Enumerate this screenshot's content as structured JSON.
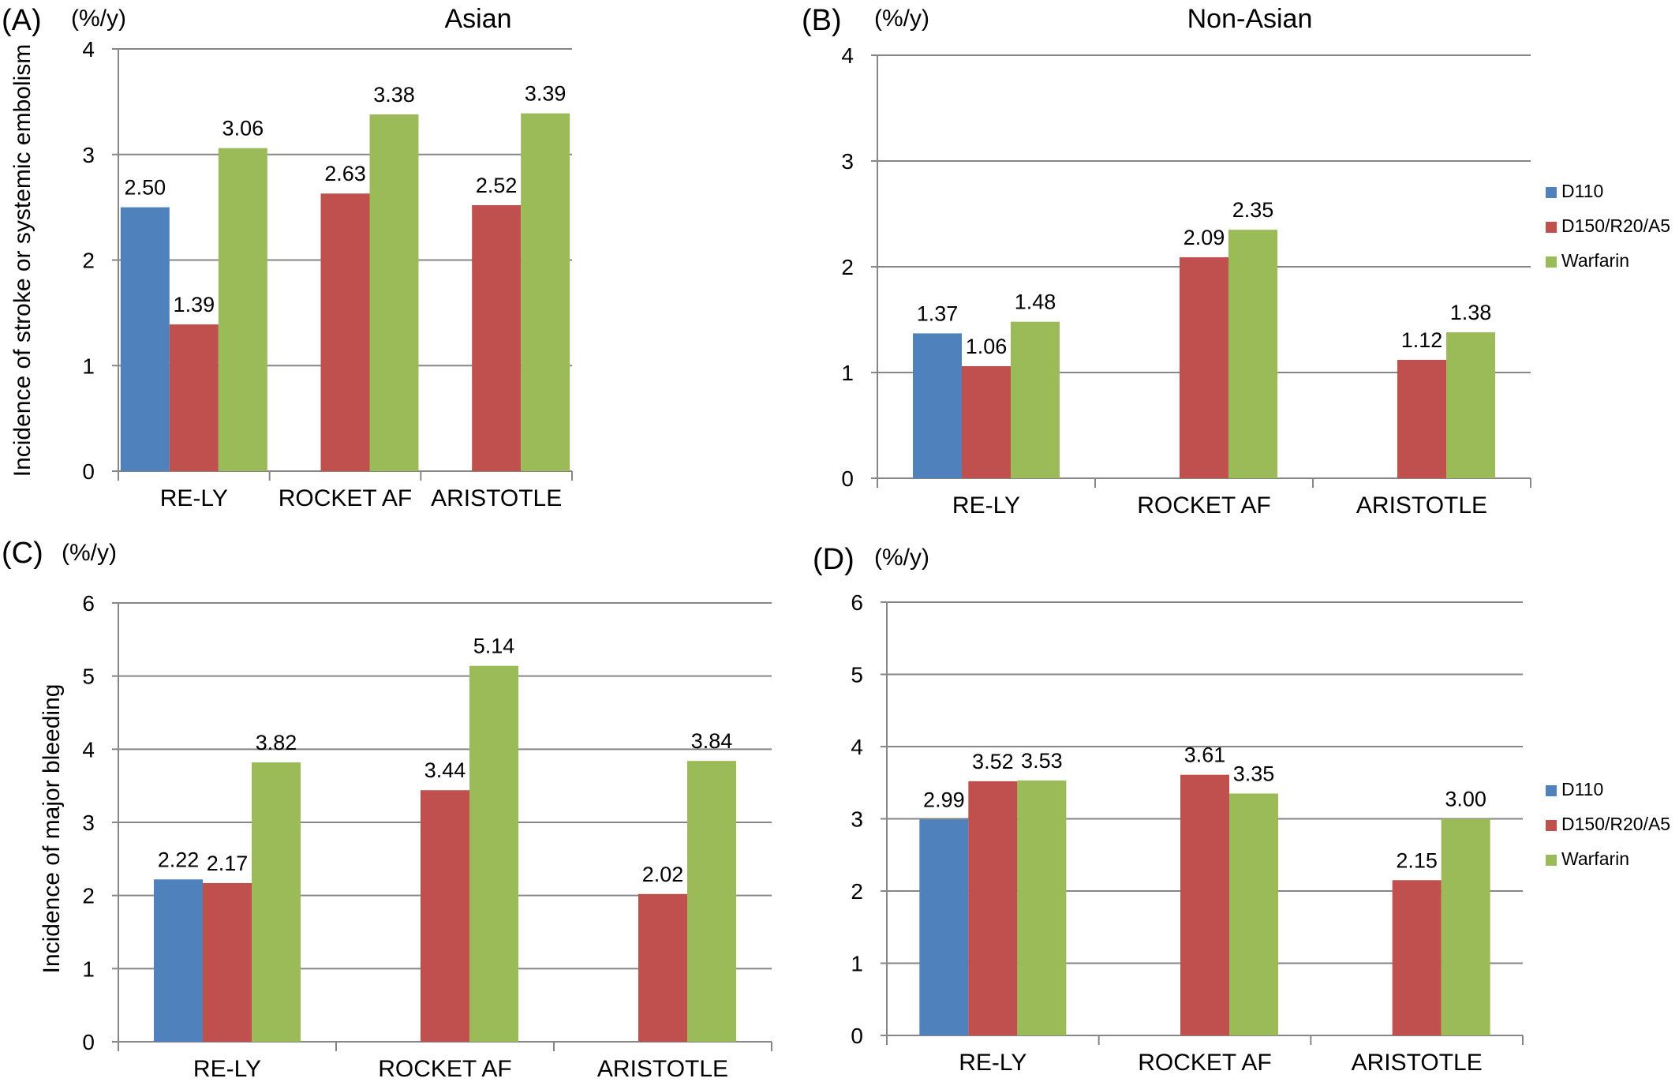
{
  "chart_data": [
    {
      "panel": "(A)",
      "type": "bar",
      "title": "Asian",
      "unit": "(%/y)",
      "ylabel": "Incidence of stroke or systemic embolism",
      "categories": [
        "RE-LY",
        "ROCKET AF",
        "ARISTOTLE"
      ],
      "ylim": [
        0,
        4
      ],
      "yticks": [
        0,
        1,
        2,
        3,
        4
      ],
      "grid": true,
      "legend": null,
      "series": [
        {
          "name": "D110",
          "color": "#4F81BD",
          "values": [
            2.5,
            null,
            null
          ],
          "labels": [
            "2.50",
            null,
            null
          ]
        },
        {
          "name": "D150/R20/A5",
          "color": "#C0504D",
          "values": [
            1.39,
            2.63,
            2.52
          ],
          "labels": [
            "1.39",
            "2.63",
            "2.52"
          ]
        },
        {
          "name": "Warfarin",
          "color": "#9BBB59",
          "values": [
            3.06,
            3.38,
            3.39
          ],
          "labels": [
            "3.06",
            "3.38",
            "3.39"
          ]
        }
      ]
    },
    {
      "panel": "(B)",
      "type": "bar",
      "title": "Non-Asian",
      "unit": "(%/y)",
      "ylabel": "",
      "categories": [
        "RE-LY",
        "ROCKET AF",
        "ARISTOTLE"
      ],
      "ylim": [
        0,
        4
      ],
      "yticks": [
        0,
        1,
        2,
        3,
        4
      ],
      "grid": true,
      "legend": "right",
      "series": [
        {
          "name": "D110",
          "color": "#4F81BD",
          "values": [
            1.37,
            null,
            null
          ],
          "labels": [
            "1.37",
            null,
            null
          ]
        },
        {
          "name": "D150/R20/A5",
          "color": "#C0504D",
          "values": [
            1.06,
            2.09,
            1.12
          ],
          "labels": [
            "1.06",
            "2.09",
            "1.12"
          ]
        },
        {
          "name": "Warfarin",
          "color": "#9BBB59",
          "values": [
            1.48,
            2.35,
            1.38
          ],
          "labels": [
            "1.48",
            "2.35",
            "1.38"
          ]
        }
      ]
    },
    {
      "panel": "(C)",
      "type": "bar",
      "title": "",
      "unit": "(%/y)",
      "ylabel": "Incidence of major bleeding",
      "categories": [
        "RE-LY",
        "ROCKET AF",
        "ARISTOTLE"
      ],
      "ylim": [
        0,
        6
      ],
      "yticks": [
        0,
        1,
        2,
        3,
        4,
        5,
        6
      ],
      "grid": true,
      "legend": null,
      "series": [
        {
          "name": "D110",
          "color": "#4F81BD",
          "values": [
            2.22,
            null,
            null
          ],
          "labels": [
            "2.22",
            null,
            null
          ]
        },
        {
          "name": "D150/R20/A5",
          "color": "#C0504D",
          "values": [
            2.17,
            3.44,
            2.02
          ],
          "labels": [
            "2.17",
            "3.44",
            "2.02"
          ]
        },
        {
          "name": "Warfarin",
          "color": "#9BBB59",
          "values": [
            3.82,
            5.14,
            3.84
          ],
          "labels": [
            "3.82",
            "5.14",
            "3.84"
          ]
        }
      ]
    },
    {
      "panel": "(D)",
      "type": "bar",
      "title": "",
      "unit": "(%/y)",
      "ylabel": "",
      "categories": [
        "RE-LY",
        "ROCKET AF",
        "ARISTOTLE"
      ],
      "ylim": [
        0,
        6
      ],
      "yticks": [
        0,
        1,
        2,
        3,
        4,
        5,
        6
      ],
      "grid": true,
      "legend": "right",
      "series": [
        {
          "name": "D110",
          "color": "#4F81BD",
          "values": [
            2.99,
            null,
            null
          ],
          "labels": [
            "2.99",
            null,
            null
          ]
        },
        {
          "name": "D150/R20/A5",
          "color": "#C0504D",
          "values": [
            3.52,
            3.61,
            2.15
          ],
          "labels": [
            "3.52",
            "3.61",
            "2.15"
          ]
        },
        {
          "name": "Warfarin",
          "color": "#9BBB59",
          "values": [
            3.53,
            3.35,
            3.0
          ],
          "labels": [
            "3.53",
            "3.35",
            "3.00"
          ]
        }
      ]
    }
  ]
}
